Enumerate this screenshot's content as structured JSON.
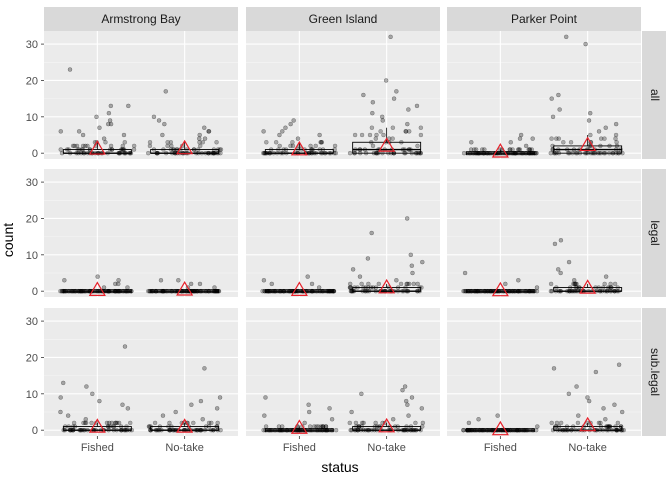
{
  "chart_data": {
    "type": "scatter",
    "layers": [
      "jittered points",
      "boxplot",
      "mean triangle"
    ],
    "xlabel": "status",
    "ylabel": "count",
    "x_categories": [
      "Fished",
      "No-take"
    ],
    "ylim": [
      0,
      32
    ],
    "y_ticks": [
      0,
      10,
      20,
      30
    ],
    "column_facets": [
      "Armstrong Bay",
      "Green Island",
      "Parker Point"
    ],
    "row_facets": [
      "all",
      "legal",
      "sub.legal"
    ],
    "grid": true,
    "mean_marker": {
      "shape": "triangle",
      "color": "#e8202a"
    },
    "point_color": "#000000",
    "panels": [
      {
        "site": "Armstrong Bay",
        "size_class": "all",
        "groups": [
          {
            "status": "Fished",
            "q1": 0,
            "median": 0,
            "q3": 1,
            "whisker_high": 3,
            "mean": 1.2,
            "outliers": [
              4,
              5,
              5,
              6,
              6,
              7,
              8,
              8,
              9,
              10,
              11,
              13,
              13,
              23
            ]
          },
          {
            "status": "No-take",
            "q1": 0,
            "median": 0,
            "q3": 1,
            "whisker_high": 3,
            "mean": 1.3,
            "outliers": [
              4,
              4,
              5,
              5,
              6,
              6,
              7,
              8,
              9,
              10,
              17
            ]
          }
        ]
      },
      {
        "site": "Green Island",
        "size_class": "all",
        "groups": [
          {
            "status": "Fished",
            "q1": 0,
            "median": 0,
            "q3": 1,
            "whisker_high": 3,
            "mean": 1.0,
            "outliers": [
              4,
              5,
              5,
              6,
              6,
              7,
              8,
              9
            ]
          },
          {
            "status": "No-take",
            "q1": 0,
            "median": 1,
            "q3": 3,
            "whisker_high": 7,
            "mean": 2.0,
            "outliers": [
              8,
              9,
              10,
              11,
              12,
              13,
              14,
              15,
              16,
              17,
              20,
              32
            ]
          }
        ]
      },
      {
        "site": "Parker Point",
        "size_class": "all",
        "groups": [
          {
            "status": "Fished",
            "q1": 0,
            "median": 0,
            "q3": 0,
            "whisker_high": 1,
            "mean": 0.4,
            "outliers": [
              2,
              3,
              3,
              4,
              4,
              5
            ]
          },
          {
            "status": "No-take",
            "q1": 0,
            "median": 1,
            "q3": 2,
            "whisker_high": 5,
            "mean": 2.2,
            "outliers": [
              6,
              7,
              8,
              9,
              10,
              11,
              12,
              15,
              16,
              30,
              32
            ]
          }
        ]
      },
      {
        "site": "Armstrong Bay",
        "size_class": "legal",
        "groups": [
          {
            "status": "Fished",
            "q1": 0,
            "median": 0,
            "q3": 0,
            "whisker_high": 0,
            "mean": 0.3,
            "outliers": [
              1,
              1,
              2,
              2,
              3,
              3,
              4
            ]
          },
          {
            "status": "No-take",
            "q1": 0,
            "median": 0,
            "q3": 0,
            "whisker_high": 0,
            "mean": 0.4,
            "outliers": [
              1,
              1,
              2,
              2,
              3,
              3
            ]
          }
        ]
      },
      {
        "site": "Green Island",
        "size_class": "legal",
        "groups": [
          {
            "status": "Fished",
            "q1": 0,
            "median": 0,
            "q3": 0,
            "whisker_high": 0,
            "mean": 0.3,
            "outliers": [
              1,
              2,
              2,
              3,
              4
            ]
          },
          {
            "status": "No-take",
            "q1": 0,
            "median": 0,
            "q3": 1,
            "whisker_high": 2,
            "mean": 1.0,
            "outliers": [
              3,
              4,
              5,
              6,
              7,
              8,
              9,
              10,
              16,
              20
            ]
          }
        ]
      },
      {
        "site": "Parker Point",
        "size_class": "legal",
        "groups": [
          {
            "status": "Fished",
            "q1": 0,
            "median": 0,
            "q3": 0,
            "whisker_high": 0,
            "mean": 0.2,
            "outliers": [
              1,
              2,
              3,
              5
            ]
          },
          {
            "status": "No-take",
            "q1": 0,
            "median": 0,
            "q3": 1,
            "whisker_high": 2,
            "mean": 0.9,
            "outliers": [
              3,
              4,
              5,
              6,
              8,
              13,
              14
            ]
          }
        ]
      },
      {
        "site": "Armstrong Bay",
        "size_class": "sub.legal",
        "groups": [
          {
            "status": "Fished",
            "q1": 0,
            "median": 0,
            "q3": 1,
            "whisker_high": 2,
            "mean": 0.9,
            "outliers": [
              3,
              4,
              5,
              6,
              7,
              8,
              9,
              10,
              12,
              13,
              23
            ]
          },
          {
            "status": "No-take",
            "q1": 0,
            "median": 0,
            "q3": 1,
            "whisker_high": 2,
            "mean": 0.9,
            "outliers": [
              3,
              4,
              5,
              6,
              7,
              8,
              9,
              17
            ]
          }
        ]
      },
      {
        "site": "Green Island",
        "size_class": "sub.legal",
        "groups": [
          {
            "status": "Fished",
            "q1": 0,
            "median": 0,
            "q3": 0,
            "whisker_high": 1,
            "mean": 0.6,
            "outliers": [
              2,
              3,
              4,
              5,
              6,
              7,
              9
            ]
          },
          {
            "status": "No-take",
            "q1": 0,
            "median": 0,
            "q3": 1,
            "whisker_high": 2,
            "mean": 1.0,
            "outliers": [
              3,
              4,
              5,
              6,
              7,
              8,
              9,
              10,
              11,
              12
            ]
          }
        ]
      },
      {
        "site": "Parker Point",
        "size_class": "sub.legal",
        "groups": [
          {
            "status": "Fished",
            "q1": 0,
            "median": 0,
            "q3": 0,
            "whisker_high": 0,
            "mean": 0.2,
            "outliers": [
              1,
              2,
              3,
              4
            ]
          },
          {
            "status": "No-take",
            "q1": 0,
            "median": 0,
            "q3": 1,
            "whisker_high": 2,
            "mean": 1.3,
            "outliers": [
              3,
              4,
              5,
              6,
              7,
              8,
              9,
              10,
              12,
              16,
              17,
              18
            ]
          }
        ]
      }
    ]
  }
}
